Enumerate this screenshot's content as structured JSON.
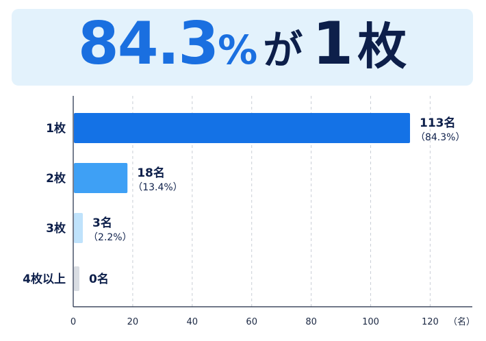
{
  "headline": {
    "number": "84.3",
    "percent": "%",
    "particle": "が",
    "count": "1",
    "counter": "枚",
    "number_color": "#1a6fe0",
    "text_color": "#0d1f4a"
  },
  "chart_data": {
    "type": "bar",
    "orientation": "horizontal",
    "categories": [
      "1枚",
      "2枚",
      "3枚",
      "4枚以上"
    ],
    "values": [
      113,
      18,
      3,
      0
    ],
    "value_labels": [
      "113名",
      "18名",
      "3名",
      "0名"
    ],
    "percent_labels": [
      "（84.3%）",
      "（13.4%）",
      "（2.2%）",
      ""
    ],
    "bar_colors": [
      "#1472e6",
      "#3ea0f5",
      "#bfe2fb",
      "#d9dde3"
    ],
    "x_ticks": [
      0,
      20,
      40,
      60,
      80,
      100,
      120
    ],
    "x_unit": "（名）",
    "xlim": [
      0,
      134
    ],
    "grid": true,
    "label_color": "#0d1f4a",
    "grid_color": "#c9ced6"
  }
}
